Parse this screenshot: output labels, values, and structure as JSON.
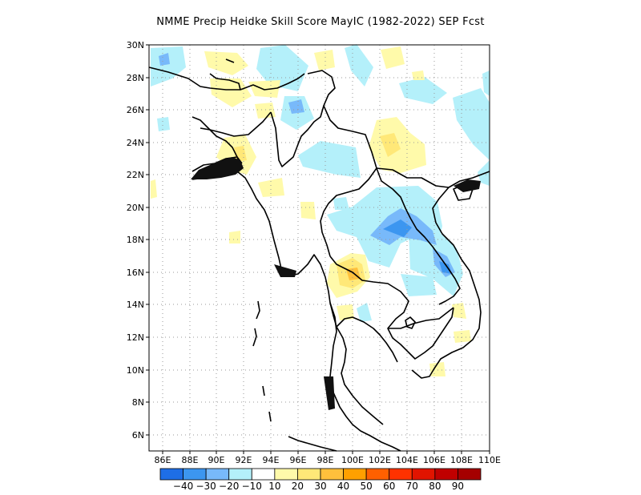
{
  "title": "NMME Precip Heidke Skill Score MayIC (1982-2022) SEP Fcst",
  "map": {
    "lon_range": [
      85,
      110
    ],
    "lat_range": [
      5,
      30
    ],
    "x_ticks": [
      "86E",
      "88E",
      "90E",
      "92E",
      "94E",
      "96E",
      "98E",
      "100E",
      "102E",
      "104E",
      "106E",
      "108E",
      "110E"
    ],
    "y_ticks": [
      "30N",
      "28N",
      "26N",
      "24N",
      "22N",
      "20N",
      "18N",
      "16N",
      "14N",
      "12N",
      "10N",
      "8N",
      "6N"
    ],
    "grid": "dotted"
  },
  "colorbar": {
    "colors": [
      "#1e6ee6",
      "#3c96f0",
      "#78b9fa",
      "#b4f0fa",
      "#ffffff",
      "#fffaaa",
      "#ffe878",
      "#ffc03c",
      "#ffa000",
      "#ff6000",
      "#ff3200",
      "#e11400",
      "#c00000",
      "#a50000"
    ],
    "labels": [
      "-40",
      "-30",
      "-20",
      "-10",
      "10",
      "20",
      "30",
      "40",
      "50",
      "60",
      "70",
      "80",
      "90"
    ]
  }
}
